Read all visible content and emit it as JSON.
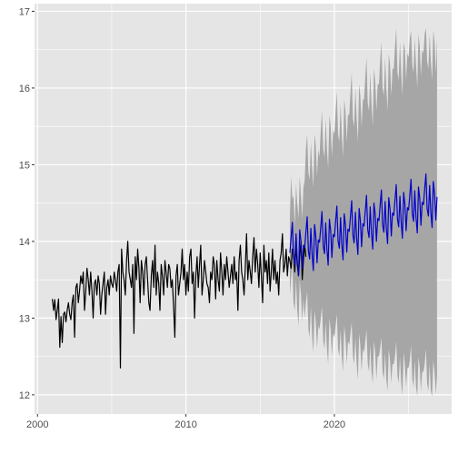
{
  "chart_data": {
    "type": "line",
    "title": "",
    "xlabel": "",
    "ylabel": "",
    "xlim": [
      1999.8,
      2027.9
    ],
    "ylim": [
      11.75,
      17.1
    ],
    "grid": true,
    "x_ticks": [
      2000,
      2010,
      2020
    ],
    "x_tick_labels": [
      "2000",
      "2010",
      "2020"
    ],
    "y_ticks": [
      12,
      13,
      14,
      15,
      16,
      17
    ],
    "y_tick_labels": [
      "12 -",
      "13 -",
      "14 -",
      "15 -",
      "16 -",
      "17 -"
    ],
    "colors": {
      "panel": "#e5e5e5",
      "grid_major": "#ffffff",
      "history": "#000000",
      "forecast": "#0000cc",
      "interval": "#a6a6a6",
      "tick_text": "#4d4d4d"
    },
    "series": [
      {
        "role": "history",
        "x_start": 2001.0,
        "x_step": 0.08333,
        "values": [
          13.25,
          13.1,
          13.24,
          12.98,
          13.1,
          13.25,
          12.62,
          13.02,
          12.68,
          13.05,
          13.08,
          12.95,
          13.1,
          13.2,
          13.05,
          12.98,
          13.2,
          13.3,
          12.75,
          13.4,
          13.45,
          13.2,
          13.35,
          13.55,
          13.45,
          13.6,
          13.1,
          13.35,
          13.65,
          13.5,
          13.3,
          13.6,
          13.35,
          13.0,
          13.45,
          13.5,
          13.3,
          13.55,
          13.45,
          13.05,
          13.3,
          13.45,
          13.6,
          13.05,
          13.4,
          13.5,
          13.3,
          13.55,
          13.45,
          13.4,
          13.6,
          13.5,
          13.35,
          13.6,
          13.7,
          12.35,
          13.9,
          13.6,
          13.5,
          13.3,
          13.75,
          14.0,
          13.6,
          13.5,
          13.4,
          13.7,
          12.8,
          13.8,
          13.5,
          13.9,
          13.65,
          13.2,
          13.75,
          13.6,
          13.3,
          13.7,
          13.8,
          13.5,
          13.2,
          13.1,
          13.55,
          13.75,
          13.4,
          13.95,
          13.3,
          13.6,
          13.45,
          13.1,
          13.7,
          13.55,
          13.3,
          13.75,
          13.6,
          13.4,
          13.7,
          13.65,
          13.4,
          13.5,
          13.15,
          12.75,
          13.55,
          13.7,
          13.3,
          13.45,
          13.6,
          13.9,
          13.5,
          13.7,
          13.3,
          13.6,
          13.35,
          13.8,
          13.9,
          13.45,
          13.6,
          13.0,
          13.55,
          13.8,
          13.4,
          13.7,
          13.95,
          13.3,
          13.5,
          13.75,
          13.6,
          13.45,
          13.4,
          13.2,
          13.6,
          13.5,
          13.8,
          13.7,
          13.25,
          13.75,
          13.5,
          13.35,
          13.85,
          13.6,
          13.3,
          13.7,
          13.5,
          13.8,
          13.6,
          13.4,
          13.55,
          13.7,
          13.45,
          13.8,
          13.5,
          13.6,
          13.1,
          13.75,
          13.95,
          13.6,
          13.5,
          13.3,
          13.65,
          14.1,
          13.5,
          13.75,
          13.6,
          13.45,
          13.8,
          14.05,
          13.6,
          13.9,
          13.7,
          13.4,
          13.85,
          13.55,
          13.2,
          13.95,
          13.6,
          13.75,
          13.45,
          13.85,
          13.35,
          13.6,
          13.9,
          13.5,
          13.75,
          13.45,
          13.6,
          13.3,
          13.75,
          13.85,
          14.1,
          13.6,
          13.7,
          13.9,
          13.55,
          13.8,
          13.75,
          13.65,
          13.9,
          13.85,
          13.6,
          13.95,
          13.7,
          13.55,
          13.8,
          14.0,
          13.5,
          13.75,
          13.95,
          13.8
        ]
      },
      {
        "role": "forecast",
        "x_start": 2017.0,
        "x_step": 0.08333,
        "values": [
          13.85,
          14.05,
          14.25,
          13.8,
          13.7,
          14.1,
          13.75,
          13.55,
          14.15,
          14.0,
          13.65,
          13.95,
          13.92,
          14.12,
          14.32,
          13.87,
          13.77,
          14.17,
          13.82,
          13.62,
          14.22,
          14.07,
          13.72,
          14.02,
          13.99,
          14.19,
          14.39,
          13.94,
          13.84,
          14.24,
          13.89,
          13.69,
          14.29,
          14.14,
          13.79,
          14.09,
          14.06,
          14.26,
          14.46,
          14.01,
          13.91,
          14.31,
          13.96,
          13.76,
          14.36,
          14.21,
          13.86,
          14.16,
          14.13,
          14.33,
          14.53,
          14.08,
          13.98,
          14.38,
          14.03,
          13.83,
          14.43,
          14.28,
          13.93,
          14.23,
          14.2,
          14.4,
          14.6,
          14.15,
          14.05,
          14.45,
          14.1,
          13.9,
          14.5,
          14.35,
          14.0,
          14.3,
          14.27,
          14.47,
          14.67,
          14.22,
          14.12,
          14.52,
          14.17,
          13.97,
          14.57,
          14.42,
          14.07,
          14.37,
          14.34,
          14.54,
          14.74,
          14.29,
          14.19,
          14.59,
          14.24,
          14.04,
          14.64,
          14.49,
          14.14,
          14.44,
          14.41,
          14.61,
          14.81,
          14.36,
          14.26,
          14.66,
          14.31,
          14.11,
          14.71,
          14.56,
          14.21,
          14.51,
          14.48,
          14.68,
          14.88,
          14.43,
          14.33,
          14.73,
          14.38,
          14.18,
          14.78,
          14.63,
          14.28,
          14.58
        ]
      }
    ],
    "interval": {
      "role": "prediction interval",
      "x_start": 2017.0,
      "x_step": 0.08333,
      "upper": [
        14.3,
        14.85,
        14.55,
        14.6,
        14.2,
        14.75,
        14.5,
        14.3,
        14.85,
        14.6,
        14.3,
        14.7,
        14.8,
        15.2,
        15.4,
        14.9,
        14.8,
        15.3,
        14.95,
        14.7,
        15.4,
        15.25,
        14.85,
        15.2,
        15.1,
        15.45,
        15.7,
        15.2,
        15.1,
        15.6,
        15.2,
        14.95,
        15.65,
        15.5,
        15.1,
        15.45,
        15.4,
        15.7,
        15.95,
        15.4,
        15.3,
        15.8,
        15.4,
        15.1,
        15.85,
        15.7,
        15.3,
        15.65,
        15.65,
        15.95,
        16.2,
        15.6,
        15.5,
        16.0,
        15.6,
        15.3,
        16.05,
        15.9,
        15.5,
        15.85,
        15.85,
        16.15,
        16.4,
        15.8,
        15.7,
        16.2,
        15.8,
        15.5,
        16.25,
        16.1,
        15.7,
        16.05,
        16.05,
        16.35,
        16.6,
        16.0,
        15.9,
        16.4,
        16.0,
        15.7,
        16.45,
        16.3,
        15.9,
        16.25,
        16.25,
        16.55,
        16.78,
        16.2,
        16.1,
        16.6,
        16.2,
        15.9,
        16.6,
        16.5,
        16.1,
        16.45,
        16.4,
        16.65,
        16.75,
        16.3,
        16.2,
        16.65,
        16.3,
        16.0,
        16.7,
        16.55,
        16.15,
        16.5,
        16.45,
        16.7,
        16.78,
        16.35,
        16.25,
        16.7,
        16.35,
        16.1,
        16.75,
        16.6,
        16.2,
        16.65
      ],
      "lower": [
        13.3,
        13.5,
        13.7,
        13.2,
        13.1,
        13.5,
        13.1,
        12.9,
        13.5,
        13.3,
        12.95,
        13.25,
        13.0,
        13.2,
        13.35,
        12.85,
        12.75,
        13.15,
        12.75,
        12.55,
        13.1,
        12.95,
        12.6,
        12.9,
        12.85,
        13.0,
        13.15,
        12.7,
        12.6,
        12.95,
        12.6,
        12.4,
        13.0,
        12.85,
        12.5,
        12.8,
        12.75,
        12.9,
        13.05,
        12.6,
        12.5,
        12.85,
        12.5,
        12.3,
        12.9,
        12.75,
        12.4,
        12.7,
        12.65,
        12.8,
        12.95,
        12.5,
        12.4,
        12.75,
        12.4,
        12.2,
        12.8,
        12.65,
        12.3,
        12.6,
        12.55,
        12.7,
        12.85,
        12.4,
        12.3,
        12.65,
        12.3,
        12.15,
        12.7,
        12.55,
        12.2,
        12.5,
        12.5,
        12.6,
        12.75,
        12.3,
        12.2,
        12.55,
        12.2,
        12.05,
        12.6,
        12.45,
        12.15,
        12.4,
        12.4,
        12.5,
        12.7,
        12.25,
        12.15,
        12.5,
        12.15,
        12.0,
        12.55,
        12.4,
        12.1,
        12.35,
        12.35,
        12.45,
        12.65,
        12.2,
        12.1,
        12.45,
        12.1,
        11.98,
        12.5,
        12.35,
        12.05,
        12.3,
        12.3,
        12.4,
        12.6,
        12.15,
        12.05,
        12.4,
        12.05,
        11.98,
        12.45,
        12.3,
        12.0,
        12.25
      ]
    }
  }
}
